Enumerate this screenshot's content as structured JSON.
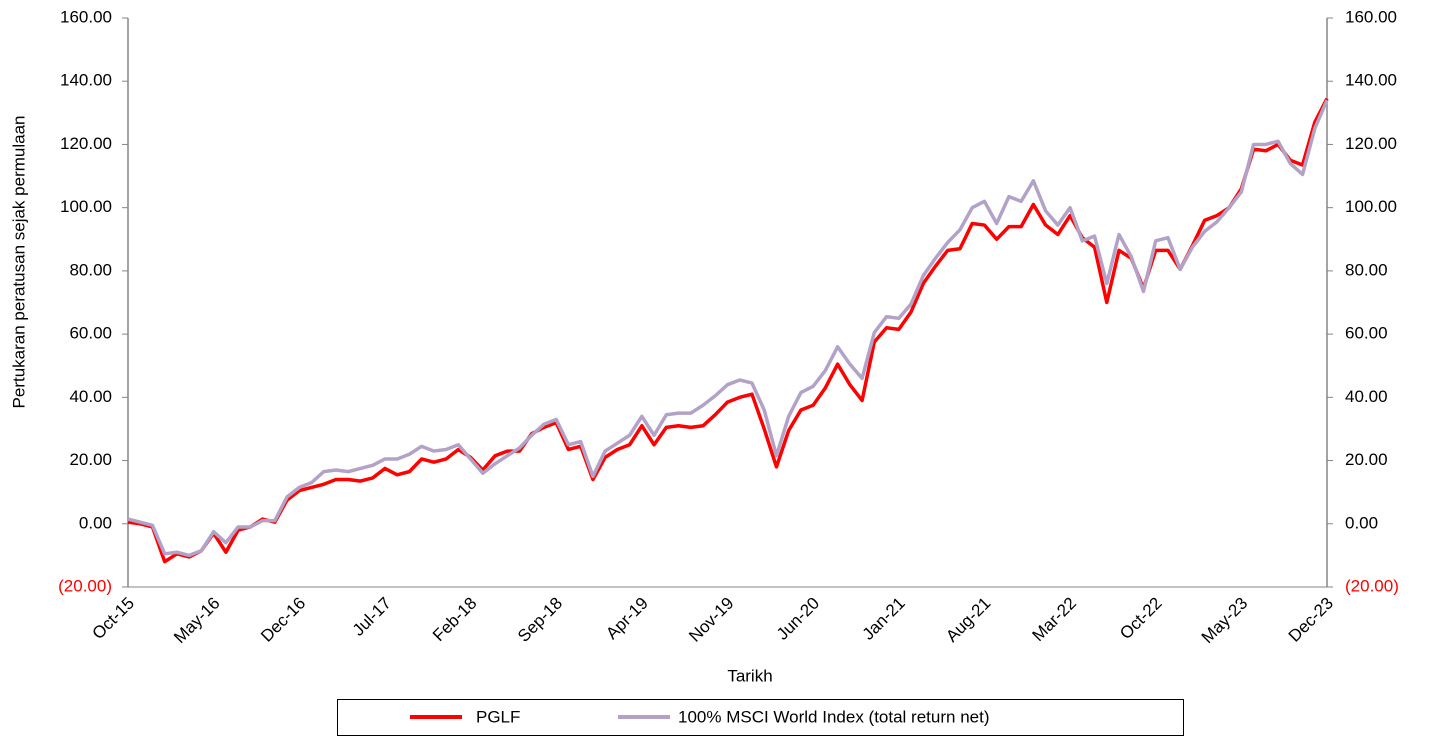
{
  "chart_data": {
    "type": "line",
    "y_label": "Pertukaran peratusan sejak permulaan",
    "x_label": "Tarikh",
    "categories": [
      "Oct-15",
      null,
      null,
      null,
      null,
      null,
      null,
      "May-16",
      null,
      null,
      null,
      null,
      null,
      null,
      "Dec-16",
      null,
      null,
      null,
      null,
      null,
      null,
      "Jul-17",
      null,
      null,
      null,
      null,
      null,
      null,
      "Feb-18",
      null,
      null,
      null,
      null,
      null,
      null,
      "Sep-18",
      null,
      null,
      null,
      null,
      null,
      null,
      "Apr-19",
      null,
      null,
      null,
      null,
      null,
      null,
      "Nov-19",
      null,
      null,
      null,
      null,
      null,
      null,
      "Jun-20",
      null,
      null,
      null,
      null,
      null,
      null,
      "Jan-21",
      null,
      null,
      null,
      null,
      null,
      null,
      "Aug-21",
      null,
      null,
      null,
      null,
      null,
      null,
      "Mar-22",
      null,
      null,
      null,
      null,
      null,
      null,
      "Oct-22",
      null,
      null,
      null,
      null,
      null,
      null,
      "May-23",
      null,
      null,
      null,
      null,
      null,
      null,
      "Dec-23"
    ],
    "series": [
      {
        "name": "PGLF",
        "color": "#ff0000",
        "values": [
          0.5,
          0,
          -1,
          -12,
          -9.5,
          -10.5,
          -8.5,
          -3,
          -9,
          -2,
          -1,
          1.5,
          0.5,
          7.5,
          10.5,
          11.5,
          12.5,
          14,
          14,
          13.5,
          14.5,
          17.5,
          15.5,
          16.5,
          20.5,
          19.5,
          20.5,
          23.5,
          21,
          17,
          21.5,
          23,
          23,
          28.5,
          30.5,
          32,
          23.5,
          24.5,
          14,
          21,
          23.5,
          25,
          31,
          25,
          30.5,
          31,
          30.5,
          31,
          34.5,
          38.5,
          40,
          41,
          30,
          18,
          29.5,
          36,
          37.5,
          43,
          50.5,
          44,
          39,
          57.5,
          62,
          61.5,
          67,
          76,
          81.5,
          86.5,
          87,
          95,
          94.5,
          90,
          94,
          94,
          101,
          94.5,
          91.5,
          97.5,
          90.5,
          87.5,
          70,
          86.5,
          84,
          74.5,
          86.5,
          86.5,
          80.5,
          88,
          96,
          97.5,
          100,
          106,
          118.5,
          118,
          120,
          115,
          113.5,
          127,
          134.5
        ]
      },
      {
        "name": "100% MSCI World Index (total return net)",
        "color": "#b3a2c7",
        "values": [
          1.5,
          0.5,
          -0.5,
          -9.5,
          -9,
          -10,
          -8.5,
          -2.5,
          -6,
          -1,
          -1,
          1,
          1,
          8.5,
          11.5,
          13,
          16.5,
          17,
          16.5,
          17.5,
          18.5,
          20.5,
          20.5,
          22,
          24.5,
          23,
          23.5,
          25,
          20.5,
          16,
          19,
          21.5,
          24,
          28,
          31.5,
          33,
          25,
          26,
          15,
          23,
          25.5,
          28,
          34,
          28,
          34.5,
          35,
          35,
          37.5,
          40.5,
          44,
          45.5,
          44.5,
          36,
          21.5,
          34,
          41.5,
          43.5,
          48.5,
          56,
          50.5,
          46,
          60.5,
          65.5,
          65,
          69.5,
          78.5,
          84,
          89,
          93,
          100,
          102,
          95,
          103.5,
          102,
          108.5,
          99,
          94.5,
          100,
          89.5,
          91,
          76,
          91.5,
          84.5,
          73.5,
          89.5,
          90.5,
          80.5,
          87.5,
          92.5,
          95.5,
          100,
          105,
          120,
          120,
          121,
          114,
          110.5,
          125,
          134
        ]
      }
    ],
    "ylim": [
      -20,
      160
    ],
    "yticks": [
      {
        "value": -20,
        "label": "(20.00)"
      },
      {
        "value": 0,
        "label": "0.00"
      },
      {
        "value": 20,
        "label": "20.00"
      },
      {
        "value": 40,
        "label": "40.00"
      },
      {
        "value": 60,
        "label": "60.00"
      },
      {
        "value": 80,
        "label": "80.00"
      },
      {
        "value": 100,
        "label": "100.00"
      },
      {
        "value": 120,
        "label": "120.00"
      },
      {
        "value": 140,
        "label": "140.00"
      },
      {
        "value": 160,
        "label": "160.00"
      }
    ],
    "y2lim": [
      -20,
      160
    ],
    "y2ticks": [
      {
        "value": -20,
        "label": "(20.00)"
      },
      {
        "value": 0,
        "label": "0.00"
      },
      {
        "value": 20,
        "label": "20.00"
      },
      {
        "value": 40,
        "label": "40.00"
      },
      {
        "value": 60,
        "label": "60.00"
      },
      {
        "value": 80,
        "label": "80.00"
      },
      {
        "value": 100,
        "label": "100.00"
      },
      {
        "value": 120,
        "label": "120.00"
      },
      {
        "value": 140,
        "label": "140.00"
      },
      {
        "value": 160,
        "label": "160.00"
      }
    ],
    "negative_tick_color": "#ff0000",
    "grid": false,
    "legend": "bottom"
  }
}
